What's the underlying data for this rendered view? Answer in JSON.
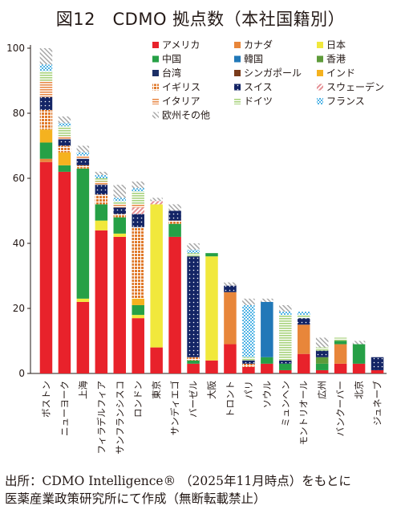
{
  "title": "図12　CDMO 拠点数（本社国籍別）",
  "note_source": "出所：CDMO Intelligence® （2025年11月時点）をもとに",
  "note_author": "医薬産業政策研究所にて作成（無断転載禁止）",
  "colors": {
    "アメリカ": "#e8222b",
    "カナダ": "#e8863a",
    "日本": "#f1e83c",
    "中国": "#26a046",
    "韓国": "#2178b8",
    "香港": "#5e9b3a",
    "台湾": "#1c2f66",
    "シンガポール": "#7a3b1b",
    "インド": "#f5b21f",
    "イギリス": "#e07a2c",
    "スイス": "#142566",
    "スウェーデン": "#e59095",
    "イタリア": "#e98b4a",
    "ドイツ": "#a8d27c",
    "フランス": "#4fb3e5",
    "欧州その他": "#a2a2a2"
  },
  "chart_data": {
    "type": "bar",
    "stacked": true,
    "title": "CDMO 拠点数（本社国籍別）",
    "xlabel": "",
    "ylabel": "",
    "ylim": [
      0,
      100
    ],
    "yticks": [
      0,
      20,
      40,
      60,
      80,
      100
    ],
    "grid": false,
    "legend_position": "top-right",
    "categories": [
      "ボストン",
      "ニューヨーク",
      "上海",
      "フィラデルフィア",
      "サンフランシスコ",
      "ロンドン",
      "東京",
      "サンディエゴ",
      "バーゼル",
      "大阪",
      "トロント",
      "パリ",
      "ソウル",
      "ミュンヘン",
      "モントリオール",
      "広州",
      "バンクーバー",
      "北京",
      "ジュネーブ"
    ],
    "series": [
      {
        "name": "アメリカ",
        "values": [
          65,
          62,
          22,
          44,
          42,
          17,
          8,
          42,
          3,
          4,
          9,
          2,
          3,
          1,
          6,
          1,
          3,
          3,
          1
        ]
      },
      {
        "name": "カナダ",
        "values": [
          1,
          0,
          0,
          0,
          0,
          0,
          0,
          0,
          0,
          0,
          16,
          0,
          0,
          0,
          9,
          0,
          6,
          0,
          0
        ]
      },
      {
        "name": "日本",
        "values": [
          0,
          0,
          1,
          3,
          1,
          1,
          44,
          0,
          0,
          32,
          0,
          0,
          0,
          0,
          0,
          0,
          0,
          0,
          0
        ]
      },
      {
        "name": "中国",
        "values": [
          5,
          2,
          40,
          5,
          5,
          3,
          0,
          4,
          1,
          1,
          0,
          0,
          2,
          2,
          0,
          2,
          1,
          6,
          0
        ]
      },
      {
        "name": "韓国",
        "values": [
          0,
          0,
          0,
          0,
          0,
          0,
          0,
          0,
          0,
          0,
          0,
          0,
          17,
          0,
          0,
          0,
          0,
          0,
          0
        ]
      },
      {
        "name": "香港",
        "values": [
          0,
          0,
          0,
          0,
          0,
          0,
          0,
          0,
          0,
          0,
          0,
          0,
          0,
          0,
          0,
          2,
          0,
          0,
          0
        ]
      },
      {
        "name": "台湾",
        "values": [
          0,
          0,
          0,
          0,
          0,
          0,
          0,
          0,
          0,
          0,
          0,
          0,
          0,
          0,
          0,
          0,
          0,
          0,
          0
        ]
      },
      {
        "name": "シンガポール",
        "values": [
          0,
          0,
          0,
          0,
          0,
          0,
          0,
          0,
          0,
          0,
          0,
          0,
          0,
          0,
          0,
          0,
          0,
          0,
          0
        ]
      },
      {
        "name": "インド",
        "values": [
          4,
          4,
          0,
          0,
          0,
          2,
          0,
          0,
          0,
          0,
          0,
          0,
          0,
          0,
          0,
          0,
          0,
          0,
          0
        ]
      },
      {
        "name": "イギリス",
        "values": [
          6,
          2,
          1,
          3,
          1,
          22,
          0,
          1,
          1,
          0,
          0,
          1,
          0,
          0,
          0,
          0,
          0,
          0,
          0
        ]
      },
      {
        "name": "スイス",
        "values": [
          4,
          2,
          2,
          3,
          2,
          4,
          0,
          3,
          31,
          0,
          2,
          1,
          0,
          1,
          2,
          2,
          0,
          0,
          4
        ]
      },
      {
        "name": "スウェーデン",
        "values": [
          0,
          0,
          0,
          0,
          0,
          2,
          1,
          0,
          0,
          0,
          0,
          0,
          0,
          0,
          0,
          0,
          0,
          0,
          0
        ]
      },
      {
        "name": "イタリア",
        "values": [
          5,
          1,
          1,
          1,
          1,
          1,
          0,
          0,
          0,
          0,
          0,
          0,
          0,
          0,
          0,
          0,
          0,
          0,
          0
        ]
      },
      {
        "name": "ドイツ",
        "values": [
          3,
          3,
          0,
          1,
          1,
          4,
          0,
          0,
          1,
          0,
          0,
          1,
          0,
          14,
          1,
          1,
          1,
          0,
          0
        ]
      },
      {
        "name": "フランス",
        "values": [
          2,
          1,
          1,
          1,
          1,
          1,
          0,
          0,
          1,
          0,
          0,
          16,
          0,
          1,
          1,
          0,
          0,
          0,
          0
        ]
      },
      {
        "name": "欧州その他",
        "values": [
          5,
          2,
          2,
          1,
          4,
          2,
          1,
          2,
          2,
          0,
          1,
          2,
          1,
          2,
          0,
          3,
          0,
          1,
          0
        ]
      }
    ]
  }
}
